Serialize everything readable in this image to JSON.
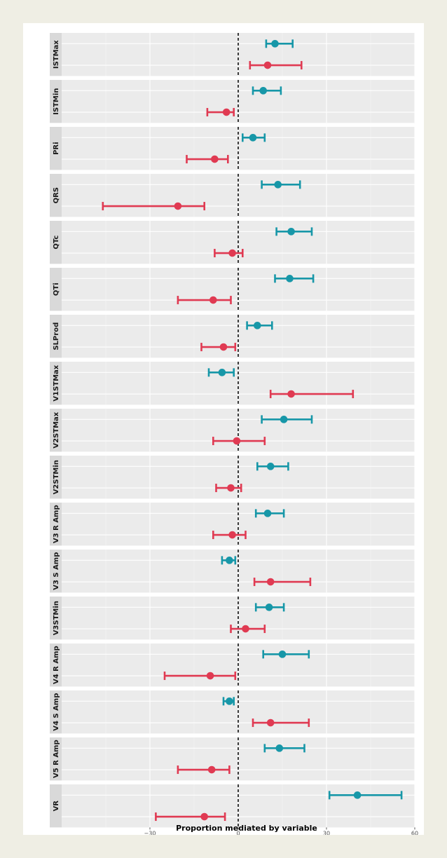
{
  "chart_data": {
    "type": "forest",
    "xlabel": "Proportion mediated by variable",
    "xlim": [
      -60,
      60
    ],
    "xticks": [
      -30,
      0,
      30,
      60
    ],
    "reference_line": 0,
    "grid": true,
    "colors": {
      "series_a": "#1797a8",
      "series_b": "#e03a52"
    },
    "panels": [
      {
        "label": "ISTMax",
        "a": {
          "est": 12.5,
          "lo": 9.5,
          "hi": 18.5
        },
        "b": {
          "est": 10,
          "lo": 4,
          "hi": 21.5
        }
      },
      {
        "label": "ISTMin",
        "a": {
          "est": 8.5,
          "lo": 5,
          "hi": 14.5
        },
        "b": {
          "est": -4,
          "lo": -10.5,
          "hi": -1.5
        }
      },
      {
        "label": "PRi",
        "a": {
          "est": 5,
          "lo": 1.5,
          "hi": 9
        },
        "b": {
          "est": -8,
          "lo": -17.5,
          "hi": -3.5
        }
      },
      {
        "label": "QRS",
        "a": {
          "est": 13.5,
          "lo": 8,
          "hi": 21
        },
        "b": {
          "est": -20.5,
          "lo": -46,
          "hi": -11.5
        }
      },
      {
        "label": "QTc",
        "a": {
          "est": 18,
          "lo": 13,
          "hi": 25
        },
        "b": {
          "est": -2,
          "lo": -8,
          "hi": 1.5
        }
      },
      {
        "label": "QTi",
        "a": {
          "est": 17.5,
          "lo": 12.5,
          "hi": 25.5
        },
        "b": {
          "est": -8.5,
          "lo": -20.5,
          "hi": -2.5
        }
      },
      {
        "label": "SLProd",
        "a": {
          "est": 6.5,
          "lo": 3,
          "hi": 11.5
        },
        "b": {
          "est": -5,
          "lo": -12.5,
          "hi": -1
        }
      },
      {
        "label": "V1STMax",
        "a": {
          "est": -5.5,
          "lo": -10,
          "hi": -1.5
        },
        "b": {
          "est": 18,
          "lo": 11,
          "hi": 39
        }
      },
      {
        "label": "V2STMax",
        "a": {
          "est": 15.5,
          "lo": 8,
          "hi": 25
        },
        "b": {
          "est": -0.5,
          "lo": -8.5,
          "hi": 9
        }
      },
      {
        "label": "V2STMin",
        "a": {
          "est": 11,
          "lo": 6.5,
          "hi": 17
        },
        "b": {
          "est": -2.5,
          "lo": -7.5,
          "hi": 1
        }
      },
      {
        "label": "V3 R Amp",
        "a": {
          "est": 10,
          "lo": 6,
          "hi": 15.5
        },
        "b": {
          "est": -2,
          "lo": -8.5,
          "hi": 2.5
        }
      },
      {
        "label": "V3 S Amp",
        "a": {
          "est": -3,
          "lo": -5.5,
          "hi": -1
        },
        "b": {
          "est": 11,
          "lo": 5.5,
          "hi": 24.5
        }
      },
      {
        "label": "V3STMin",
        "a": {
          "est": 10.5,
          "lo": 6,
          "hi": 15.5
        },
        "b": {
          "est": 2.5,
          "lo": -2.5,
          "hi": 9
        }
      },
      {
        "label": "V4 R Amp",
        "a": {
          "est": 15,
          "lo": 8.5,
          "hi": 24
        },
        "b": {
          "est": -9.5,
          "lo": -25,
          "hi": -1
        }
      },
      {
        "label": "V4 S Amp",
        "a": {
          "est": -3,
          "lo": -5,
          "hi": -1.5
        },
        "b": {
          "est": 11,
          "lo": 5,
          "hi": 24
        }
      },
      {
        "label": "V5 R Amp",
        "a": {
          "est": 14,
          "lo": 9,
          "hi": 22.5
        },
        "b": {
          "est": -9,
          "lo": -20.5,
          "hi": -3
        }
      },
      {
        "label": "VR",
        "a": {
          "est": 40.5,
          "lo": 31,
          "hi": 55.5
        },
        "b": {
          "est": -11.5,
          "lo": -28,
          "hi": -4.5
        }
      }
    ]
  }
}
